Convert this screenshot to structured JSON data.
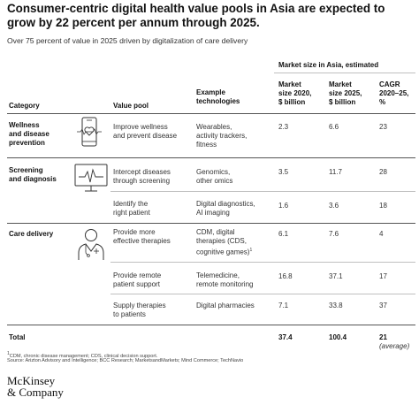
{
  "title": "Consumer-centric digital health value pools in Asia are expected to grow by 22 percent per annum through 2025.",
  "subtitle": "Over 75 percent of value in 2025 driven by digitalization of care delivery",
  "table": {
    "group_header": "Market size in Asia, estimated",
    "columns": {
      "category": "Category",
      "value_pool": "Value pool",
      "example_technologies": [
        "Example",
        "technologies"
      ],
      "market_2020": [
        "Market",
        "size 2020,",
        "$ billion"
      ],
      "market_2025": [
        "Market",
        "size 2025,",
        "$ billion"
      ],
      "cagr": [
        "CAGR",
        "2020–25,",
        "%"
      ]
    },
    "rows": [
      {
        "category": [
          "Wellness",
          "and disease",
          "prevention"
        ],
        "icon": "smartphone-heart-icon",
        "value_pool": [
          "Improve wellness",
          "and prevent disease"
        ],
        "tech": [
          "Wearables,",
          "activity trackers,",
          "fitness"
        ],
        "m2020": "2.3",
        "m2025": "6.6",
        "cagr": "23"
      },
      {
        "category": [
          "Screening",
          "and diagnosis"
        ],
        "icon": "monitor-pulse-icon",
        "value_pool": [
          "Intercept diseases",
          "through screening"
        ],
        "tech": [
          "Genomics,",
          "other omics"
        ],
        "m2020": "3.5",
        "m2025": "11.7",
        "cagr": "28"
      },
      {
        "category": [],
        "icon": "",
        "value_pool": [
          "Identify the",
          "right patient"
        ],
        "tech": [
          "Digital diagnostics,",
          "AI imaging"
        ],
        "m2020": "1.6",
        "m2025": "3.6",
        "cagr": "18"
      },
      {
        "category": [
          "Care delivery"
        ],
        "icon": "doctor-icon",
        "value_pool": [
          "Provide more",
          "effective therapies"
        ],
        "tech": [
          "CDM, digital",
          "therapies (CDS,",
          "cognitive games)"
        ],
        "tech_sup": "1",
        "m2020": "6.1",
        "m2025": "7.6",
        "cagr": "4"
      },
      {
        "category": [],
        "icon": "",
        "value_pool": [
          "Provide remote",
          "patient support"
        ],
        "tech": [
          "Telemedicine,",
          "remote monitoring"
        ],
        "m2020": "16.8",
        "m2025": "37.1",
        "cagr": "17"
      },
      {
        "category": [],
        "icon": "",
        "value_pool": [
          "Supply therapies",
          "to patients"
        ],
        "tech": [
          "Digital pharmacies"
        ],
        "m2020": "7.1",
        "m2025": "33.8",
        "cagr": "37"
      }
    ],
    "total": {
      "label": "Total",
      "m2020": "37.4",
      "m2025": "100.4",
      "cagr": "21",
      "cagr_note": "(average)"
    }
  },
  "footnotes": {
    "note1": "CDM, chronic disease management; CDS, clinical decision support.",
    "note1_marker": "1",
    "source": "Source: Arizton Advisory and Intelligence; BCC Research; MarketsandMarkets; Mind Commerce; TechNavio"
  },
  "logo": {
    "line1": "McKinsey",
    "line2": "& Company"
  }
}
